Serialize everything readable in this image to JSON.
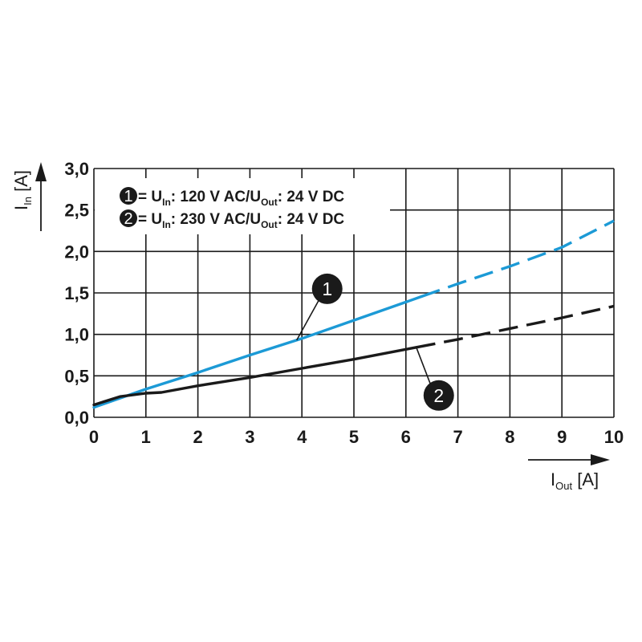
{
  "chart_data": {
    "type": "line",
    "xlabel": {
      "main": "I",
      "sub": "Out",
      "unit": " [A]"
    },
    "ylabel": {
      "main": "I",
      "sub": "In",
      "unit": " [A]"
    },
    "xlim": [
      0,
      10
    ],
    "ylim": [
      0,
      3
    ],
    "x_ticks": [
      "0",
      "1",
      "2",
      "3",
      "4",
      "5",
      "6",
      "7",
      "8",
      "9",
      "10"
    ],
    "y_ticks": [
      "0,0",
      "0,5",
      "1,0",
      "1,5",
      "2,0",
      "2,5",
      "3,0"
    ],
    "grid": true,
    "legend_placement": "top-left",
    "series": [
      {
        "id": "1",
        "color": "#1c9ad6",
        "legend": {
          "marker": "1",
          "prefix": " = U",
          "sub1": "In",
          "mid": ": 120 V AC/U",
          "sub2": "Out",
          "suffix": ": 24 V DC"
        },
        "points": [
          [
            0,
            0.12
          ],
          [
            1,
            0.34
          ],
          [
            2,
            0.54
          ],
          [
            3,
            0.75
          ],
          [
            4,
            0.95
          ],
          [
            5,
            1.17
          ],
          [
            6,
            1.39
          ],
          [
            7,
            1.61
          ],
          [
            8,
            1.82
          ],
          [
            9,
            2.05
          ],
          [
            10,
            2.37
          ]
        ],
        "solid_until": 6.3
      },
      {
        "id": "2",
        "color": "#1a1a1a",
        "legend": {
          "marker": "2",
          "prefix": " = U",
          "sub1": "In",
          "mid": ": 230 V AC/U",
          "sub2": "Out",
          "suffix": ": 24 V DC"
        },
        "points": [
          [
            0,
            0.15
          ],
          [
            0.5,
            0.25
          ],
          [
            1,
            0.29
          ],
          [
            1.3,
            0.3
          ],
          [
            2,
            0.38
          ],
          [
            3,
            0.48
          ],
          [
            4,
            0.59
          ],
          [
            5,
            0.7
          ],
          [
            6,
            0.82
          ],
          [
            7,
            0.94
          ],
          [
            8,
            1.07
          ],
          [
            9,
            1.2
          ],
          [
            10,
            1.34
          ]
        ],
        "solid_until": 6.2
      }
    ],
    "annotations": [
      {
        "label": "1",
        "series": "1",
        "at_x": 3.9
      },
      {
        "label": "2",
        "series": "2",
        "at_x": 6.2
      }
    ]
  }
}
